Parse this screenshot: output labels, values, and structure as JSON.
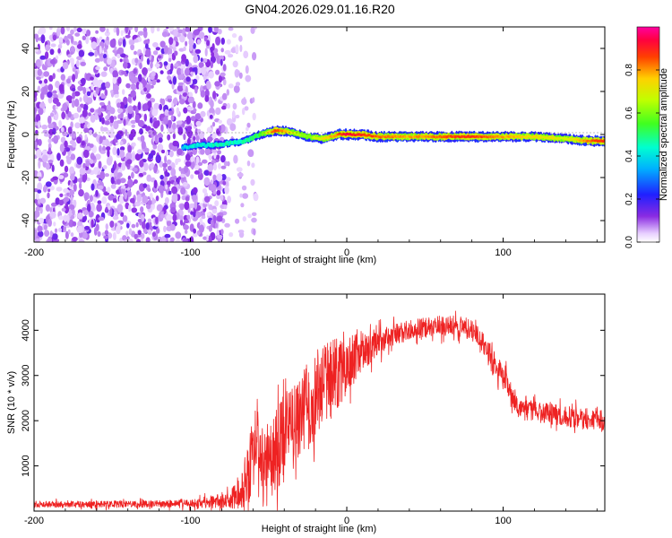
{
  "title": "GN04.2026.029.01.16.R20",
  "colors": {
    "snr_line": "#ee2222",
    "axis": "#000000",
    "background": "#ffffff"
  },
  "chart_data": [
    {
      "type": "heatmap",
      "name": "spectrogram",
      "xlabel": "Height of straight line (km)",
      "ylabel": "Frequency (Hz)",
      "xlim": [
        -200,
        165
      ],
      "ylim": [
        -50,
        50
      ],
      "xticks": [
        -200,
        -100,
        0,
        100
      ],
      "xtick_labels": [
        "-200",
        "-100",
        "0",
        "100"
      ],
      "yticks": [
        -40,
        -20,
        0,
        20,
        40
      ],
      "ytick_labels": [
        "-40",
        "-20",
        "0",
        "20",
        "40"
      ],
      "colorbar": {
        "label": "Normalized spectral amplitude",
        "range": [
          0,
          1
        ],
        "ticks": [
          0.0,
          0.2,
          0.4,
          0.6,
          0.8
        ],
        "tick_labels": [
          "0.0",
          "0.2",
          "0.4",
          "0.6",
          "0.8"
        ],
        "colormap": "rainbow (white-purple-blue-cyan-green-yellow-red-magenta)"
      },
      "noise_region": {
        "x_range": [
          -200,
          -78
        ],
        "sparse_until": -58,
        "amplitude": 0.08
      },
      "ridge": {
        "x": [
          -105,
          -95,
          -85,
          -75,
          -65,
          -55,
          -45,
          -35,
          -25,
          -15,
          -5,
          0,
          10,
          20,
          40,
          60,
          80,
          100,
          120,
          140,
          155,
          165
        ],
        "freq": [
          -6,
          -5,
          -5,
          -4,
          -3,
          0,
          2,
          1,
          -1,
          -2,
          0,
          0,
          0,
          -1,
          -1,
          -1,
          -1,
          -1,
          -1,
          -2,
          -3,
          -3
        ],
        "amplitude": [
          0.15,
          0.22,
          0.28,
          0.32,
          0.4,
          0.55,
          0.9,
          0.7,
          0.6,
          0.75,
          0.85,
          0.95,
          0.9,
          0.85,
          0.8,
          0.85,
          0.9,
          0.8,
          0.75,
          0.7,
          0.85,
          0.9
        ]
      }
    },
    {
      "type": "line",
      "name": "snr",
      "xlabel": "Height of straight line (km)",
      "ylabel": "SNR (10 * v/v)",
      "xlim": [
        -200,
        165
      ],
      "ylim": [
        0,
        4800
      ],
      "xticks": [
        -200,
        -100,
        0,
        100
      ],
      "xtick_labels": [
        "-200",
        "-100",
        "0",
        "100"
      ],
      "yticks": [
        1000,
        2000,
        3000,
        4000
      ],
      "ytick_labels": [
        "1000",
        "2000",
        "3000",
        "4000"
      ],
      "series": [
        {
          "name": "SNR",
          "envelope_x": [
            -200,
            -150,
            -100,
            -75,
            -70,
            -65,
            -60,
            -57,
            -55,
            -50,
            -45,
            -40,
            -35,
            -30,
            -25,
            -20,
            -15,
            -10,
            -5,
            0,
            5,
            10,
            15,
            20,
            30,
            40,
            50,
            60,
            70,
            80,
            85,
            90,
            95,
            100,
            105,
            110,
            120,
            130,
            140,
            150,
            165
          ],
          "envelope_mean": [
            150,
            150,
            160,
            250,
            400,
            600,
            1200,
            1800,
            900,
            1000,
            1400,
            1600,
            1800,
            2000,
            2300,
            2500,
            2800,
            2900,
            3100,
            3300,
            3400,
            3600,
            3500,
            3700,
            3900,
            4000,
            4050,
            4100,
            4100,
            4000,
            3850,
            3500,
            3200,
            2900,
            2700,
            2250,
            2200,
            2150,
            2100,
            2050,
            2000
          ],
          "envelope_spread": [
            80,
            80,
            100,
            200,
            400,
            700,
            900,
            800,
            900,
            1000,
            1100,
            1100,
            1100,
            1100,
            1100,
            1000,
            1000,
            1000,
            900,
            800,
            700,
            500,
            400,
            350,
            250,
            250,
            250,
            250,
            250,
            250,
            250,
            300,
            350,
            350,
            300,
            250,
            250,
            250,
            250,
            250,
            250
          ]
        }
      ]
    }
  ]
}
